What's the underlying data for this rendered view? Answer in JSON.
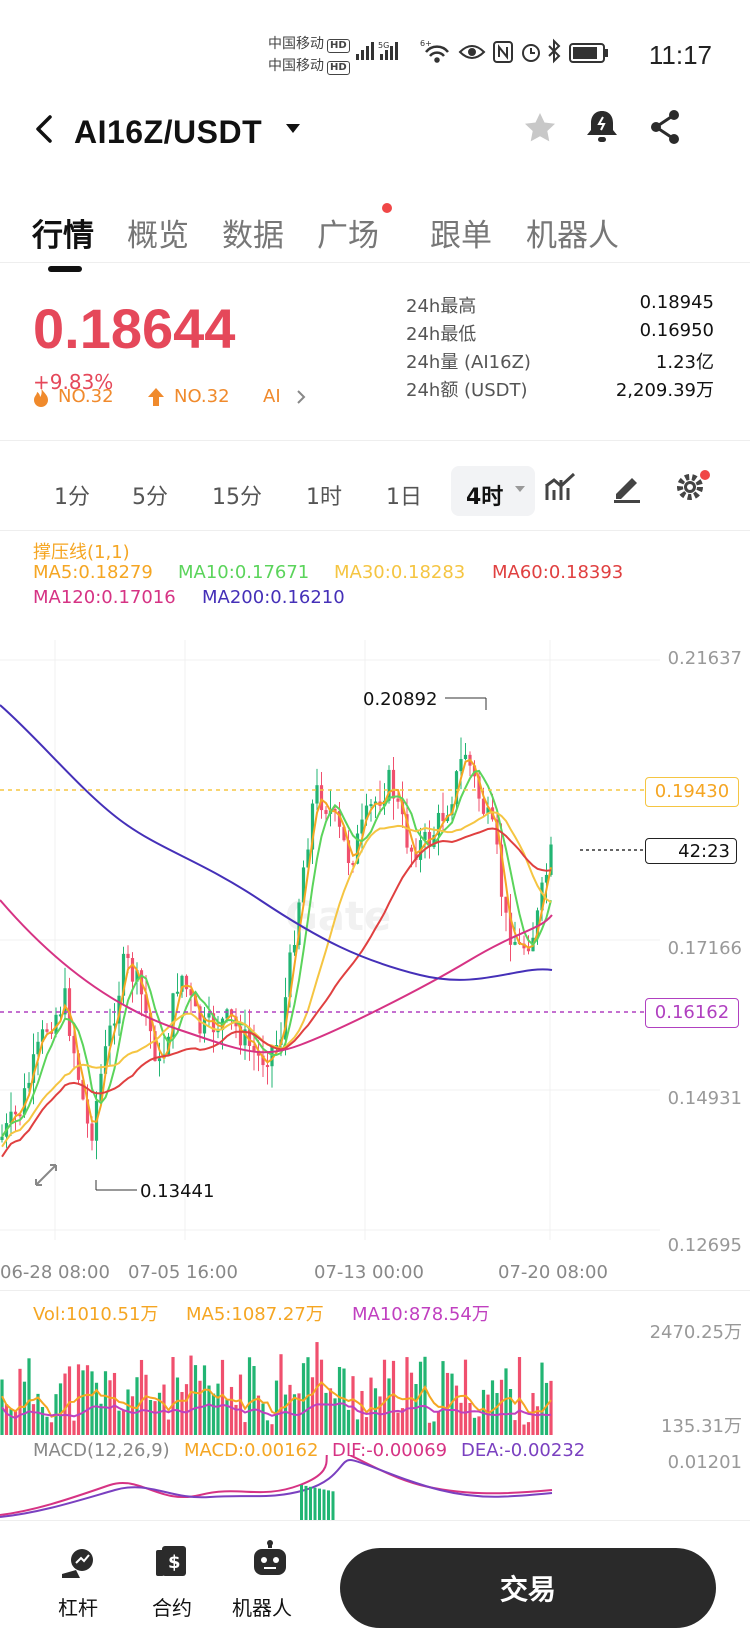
{
  "status_bar": {
    "carrier1": "中国移动",
    "carrier2": "中国移动",
    "hd": "HD",
    "time": "11:17",
    "signal_tag": "5G",
    "wifi_tag": "6+"
  },
  "header": {
    "pair": "AI16Z/USDT",
    "icons": [
      "back-icon",
      "dropdown-icon",
      "star-icon",
      "alert-bell-icon",
      "share-icon"
    ]
  },
  "tabs": [
    {
      "label": "行情",
      "active": true
    },
    {
      "label": "概览"
    },
    {
      "label": "数据"
    },
    {
      "label": "广场",
      "dot": true
    },
    {
      "label": "跟单"
    },
    {
      "label": "机器人"
    }
  ],
  "ticker": {
    "price": "0.18644",
    "change": "+9.83%",
    "rank1": "NO.32",
    "rank2": "NO.32",
    "tag": "AI",
    "stats": [
      {
        "label": "24h最高",
        "value": "0.18945"
      },
      {
        "label": "24h最低",
        "value": "0.16950"
      },
      {
        "label": "24h量 (AI16Z)",
        "value": "1.23亿"
      },
      {
        "label": "24h额 (USDT)",
        "value": "2,209.39万"
      }
    ]
  },
  "intervals": {
    "items": [
      "1分",
      "5分",
      "15分",
      "1时",
      "1日"
    ],
    "selected": "4时"
  },
  "indicators": {
    "sr_line": "撑压线(1,1)",
    "ma5": "MA5:0.18279",
    "ma10": "MA10:0.17671",
    "ma30": "MA30:0.18283",
    "ma60": "MA60:0.18393",
    "ma120": "MA120:0.17016",
    "ma200": "MA200:0.16210"
  },
  "chart": {
    "watermark": "Gate",
    "y_labels": [
      "0.21637",
      "0.17166",
      "0.14931",
      "0.12695"
    ],
    "resistance_tag": "0.19430",
    "countdown_tag": "42:23",
    "support_tag": "0.16162",
    "high_label": "0.20892",
    "low_label": "0.13441",
    "x_labels": [
      "06-28 08:00",
      "07-05 16:00",
      "07-13 00:00",
      "07-20 08:00"
    ],
    "colors": {
      "up": "#22b573",
      "down": "#f0506e",
      "ma5": "#f5a623",
      "ma10": "#5bd45b",
      "ma30": "#f5c542",
      "ma60": "#e04040",
      "ma120": "#d63384",
      "ma200": "#4530b8"
    }
  },
  "volume": {
    "vol": "Vol:1010.51万",
    "ma5": "MA5:1087.27万",
    "ma10": "MA10:878.54万",
    "y_top": "2470.25万",
    "y_bottom": "135.31万"
  },
  "macd": {
    "name": "MACD(12,26,9)",
    "macd": "MACD:0.00162",
    "dif": "DIF:-0.00069",
    "dea": "DEA:-0.00232",
    "y_top": "0.01201"
  },
  "bottom_nav": {
    "items": [
      {
        "label": "杠杆",
        "icon": "leverage-icon"
      },
      {
        "label": "合约",
        "icon": "contract-icon"
      },
      {
        "label": "机器人",
        "icon": "robot-icon"
      }
    ],
    "trade": "交易"
  }
}
